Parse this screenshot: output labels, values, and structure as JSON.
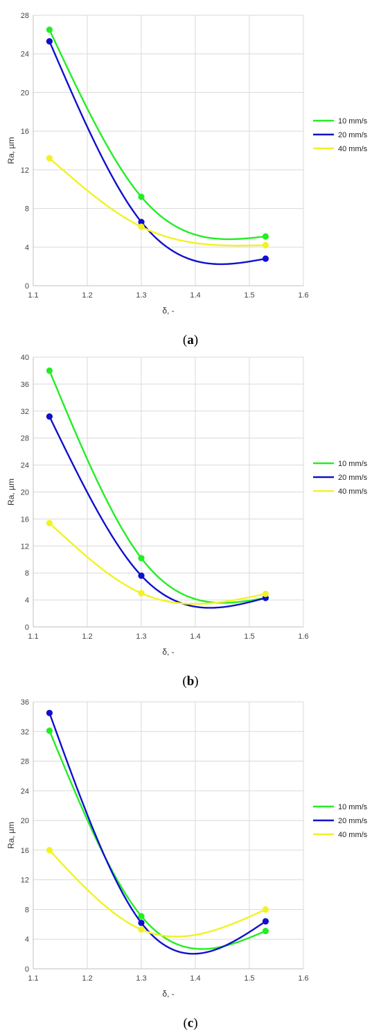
{
  "chart_data": [
    {
      "type": "line",
      "caption": "(a)",
      "xlabel": "δ, -",
      "ylabel": "Ra, µm",
      "xlim": [
        1.1,
        1.6
      ],
      "ylim": [
        0,
        28
      ],
      "xticks": [
        "1.1",
        "1.2",
        "1.3",
        "1.4",
        "1.5",
        "1.6"
      ],
      "yticks": [
        "0",
        "4",
        "8",
        "12",
        "16",
        "20",
        "24",
        "28"
      ],
      "grid": true,
      "legend_position": "right",
      "x": [
        1.13,
        1.3,
        1.53
      ],
      "series": [
        {
          "name": "10 mm/s",
          "color": "#22ee22",
          "values": [
            26.5,
            9.2,
            5.1
          ]
        },
        {
          "name": "20 mm/s",
          "color": "#1010cc",
          "values": [
            25.3,
            6.6,
            2.8
          ]
        },
        {
          "name": "40 mm/s",
          "color": "#f2f222",
          "values": [
            13.2,
            6.1,
            4.2
          ]
        }
      ]
    },
    {
      "type": "line",
      "caption": "(b)",
      "xlabel": "δ, -",
      "ylabel": "Ra, µm",
      "xlim": [
        1.1,
        1.6
      ],
      "ylim": [
        0,
        40
      ],
      "xticks": [
        "1.1",
        "1.2",
        "1.3",
        "1.4",
        "1.5",
        "1.6"
      ],
      "yticks": [
        "0",
        "4",
        "8",
        "12",
        "16",
        "20",
        "24",
        "28",
        "32",
        "36",
        "40"
      ],
      "grid": true,
      "legend_position": "right",
      "x": [
        1.13,
        1.3,
        1.53
      ],
      "series": [
        {
          "name": "10 mm/s",
          "color": "#22ee22",
          "values": [
            38.0,
            10.2,
            4.3
          ]
        },
        {
          "name": "20 mm/s",
          "color": "#1010cc",
          "values": [
            31.2,
            7.6,
            4.3
          ]
        },
        {
          "name": "40 mm/s",
          "color": "#f2f222",
          "values": [
            15.4,
            5.0,
            4.9
          ]
        }
      ]
    },
    {
      "type": "line",
      "caption": "(c)",
      "xlabel": "δ, -",
      "ylabel": "Ra, µm",
      "xlim": [
        1.1,
        1.6
      ],
      "ylim": [
        0,
        36
      ],
      "xticks": [
        "1.1",
        "1.2",
        "1.3",
        "1.4",
        "1.5",
        "1.6"
      ],
      "yticks": [
        "0",
        "4",
        "8",
        "12",
        "16",
        "20",
        "24",
        "28",
        "32",
        "36"
      ],
      "grid": true,
      "legend_position": "right",
      "x": [
        1.13,
        1.3,
        1.53
      ],
      "series": [
        {
          "name": "10 mm/s",
          "color": "#22ee22",
          "values": [
            32.1,
            7.1,
            5.1
          ]
        },
        {
          "name": "20 mm/s",
          "color": "#1010cc",
          "values": [
            34.5,
            6.2,
            6.4
          ]
        },
        {
          "name": "40 mm/s",
          "color": "#f2f222",
          "values": [
            16.0,
            5.3,
            8.0
          ]
        }
      ]
    }
  ]
}
